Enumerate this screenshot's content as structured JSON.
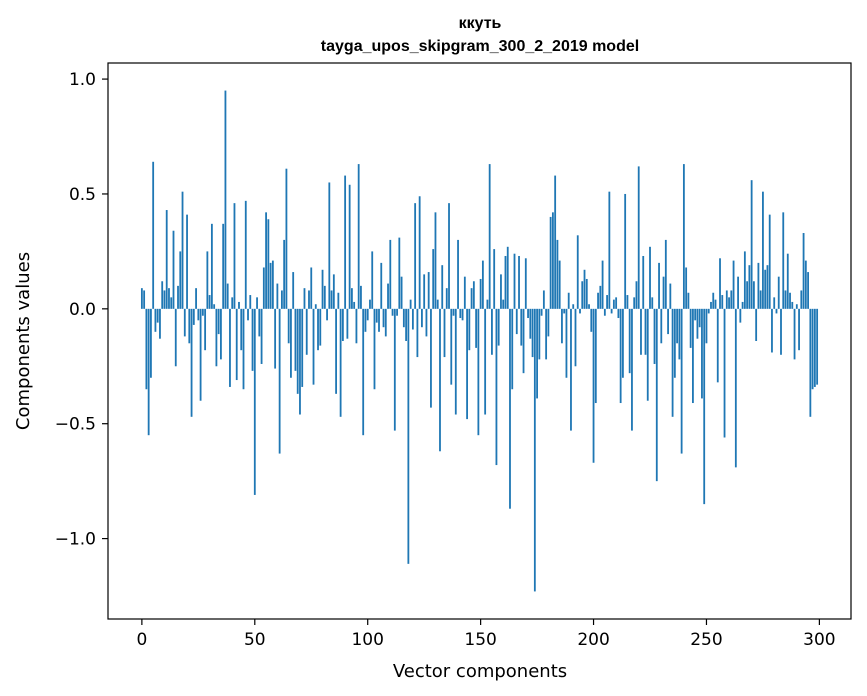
{
  "chart_data": {
    "type": "bar",
    "title": "ккуть",
    "subtitle": "tayga_upos_skipgram_300_2_2019 model",
    "xlabel": "Vector components",
    "ylabel": "Components values",
    "xlim": [
      -15,
      314
    ],
    "ylim": [
      -1.35,
      1.07
    ],
    "xticks": [
      0,
      50,
      100,
      150,
      200,
      250,
      300
    ],
    "xtick_labels": [
      "0",
      "50",
      "100",
      "150",
      "200",
      "250",
      "300"
    ],
    "yticks": [
      1.0,
      0.5,
      0.0,
      -0.5,
      -1.0
    ],
    "ytick_labels": [
      "1.0",
      "0.5",
      "0.0",
      "−0.5",
      "−1.0"
    ],
    "grid": false,
    "color": "#1f77b4",
    "x": [
      0,
      1,
      2,
      3,
      4,
      5,
      6,
      7,
      8,
      9,
      10,
      11,
      12,
      13,
      14,
      15,
      16,
      17,
      18,
      19,
      20,
      21,
      22,
      23,
      24,
      25,
      26,
      27,
      28,
      29,
      30,
      31,
      32,
      33,
      34,
      35,
      36,
      37,
      38,
      39,
      40,
      41,
      42,
      43,
      44,
      45,
      46,
      47,
      48,
      49,
      50,
      51,
      52,
      53,
      54,
      55,
      56,
      57,
      58,
      59,
      60,
      61,
      62,
      63,
      64,
      65,
      66,
      67,
      68,
      69,
      70,
      71,
      72,
      73,
      74,
      75,
      76,
      77,
      78,
      79,
      80,
      81,
      82,
      83,
      84,
      85,
      86,
      87,
      88,
      89,
      90,
      91,
      92,
      93,
      94,
      95,
      96,
      97,
      98,
      99,
      100,
      101,
      102,
      103,
      104,
      105,
      106,
      107,
      108,
      109,
      110,
      111,
      112,
      113,
      114,
      115,
      116,
      117,
      118,
      119,
      120,
      121,
      122,
      123,
      124,
      125,
      126,
      127,
      128,
      129,
      130,
      131,
      132,
      133,
      134,
      135,
      136,
      137,
      138,
      139,
      140,
      141,
      142,
      143,
      144,
      145,
      146,
      147,
      148,
      149,
      150,
      151,
      152,
      153,
      154,
      155,
      156,
      157,
      158,
      159,
      160,
      161,
      162,
      163,
      164,
      165,
      166,
      167,
      168,
      169,
      170,
      171,
      172,
      173,
      174,
      175,
      176,
      177,
      178,
      179,
      180,
      181,
      182,
      183,
      184,
      185,
      186,
      187,
      188,
      189,
      190,
      191,
      192,
      193,
      194,
      195,
      196,
      197,
      198,
      199,
      200,
      201,
      202,
      203,
      204,
      205,
      206,
      207,
      208,
      209,
      210,
      211,
      212,
      213,
      214,
      215,
      216,
      217,
      218,
      219,
      220,
      221,
      222,
      223,
      224,
      225,
      226,
      227,
      228,
      229,
      230,
      231,
      232,
      233,
      234,
      235,
      236,
      237,
      238,
      239,
      240,
      241,
      242,
      243,
      244,
      245,
      246,
      247,
      248,
      249,
      250,
      251,
      252,
      253,
      254,
      255,
      256,
      257,
      258,
      259,
      260,
      261,
      262,
      263,
      264,
      265,
      266,
      267,
      268,
      269,
      270,
      271,
      272,
      273,
      274,
      275,
      276,
      277,
      278,
      279,
      280,
      281,
      282,
      283,
      284,
      285,
      286,
      287,
      288,
      289,
      290,
      291,
      292,
      293,
      294,
      295,
      296,
      297,
      298,
      299
    ],
    "values": [
      0.09,
      0.08,
      -0.35,
      -0.55,
      -0.3,
      0.64,
      -0.1,
      -0.06,
      -0.13,
      0.12,
      0.08,
      0.43,
      0.09,
      0.05,
      0.34,
      -0.25,
      0.1,
      0.25,
      0.51,
      -0.12,
      0.41,
      -0.15,
      -0.47,
      -0.07,
      0.09,
      -0.05,
      -0.4,
      -0.03,
      -0.18,
      0.25,
      0.06,
      0.37,
      0.02,
      -0.25,
      -0.11,
      -0.22,
      0.37,
      0.95,
      0.11,
      -0.34,
      0.05,
      0.46,
      -0.31,
      0.03,
      -0.18,
      -0.35,
      0.47,
      -0.05,
      0.06,
      -0.27,
      -0.81,
      0.05,
      -0.12,
      -0.24,
      0.18,
      0.42,
      0.39,
      0.2,
      0.21,
      -0.26,
      0.11,
      -0.63,
      0.08,
      0.3,
      0.61,
      -0.15,
      -0.3,
      0.16,
      -0.27,
      -0.37,
      -0.46,
      -0.34,
      0.09,
      -0.2,
      0.08,
      0.18,
      -0.33,
      0.02,
      -0.18,
      -0.16,
      0.17,
      0.1,
      -0.05,
      0.55,
      0.08,
      0.15,
      -0.37,
      0.07,
      -0.47,
      -0.14,
      0.58,
      -0.13,
      0.54,
      0.09,
      0.03,
      -0.15,
      0.63,
      0.1,
      -0.55,
      -0.1,
      -0.05,
      0.04,
      0.25,
      -0.35,
      -0.06,
      -0.1,
      0.2,
      -0.08,
      -0.12,
      0.11,
      0.3,
      -0.03,
      -0.53,
      -0.03,
      0.31,
      0.14,
      -0.08,
      -0.14,
      -1.11,
      0.04,
      -0.09,
      0.46,
      -0.21,
      0.49,
      -0.08,
      0.15,
      -0.12,
      0.16,
      -0.43,
      0.26,
      0.42,
      0.04,
      -0.62,
      0.19,
      -0.21,
      0.09,
      0.46,
      -0.33,
      -0.03,
      -0.46,
      0.3,
      -0.04,
      -0.05,
      0.14,
      -0.48,
      -0.18,
      0.09,
      0.12,
      -0.17,
      -0.55,
      0.13,
      0.21,
      -0.46,
      0.04,
      0.63,
      -0.2,
      0.26,
      -0.68,
      -0.16,
      0.15,
      0.04,
      0.23,
      0.27,
      -0.87,
      -0.35,
      0.24,
      -0.11,
      0.23,
      -0.16,
      -0.28,
      0.22,
      -0.04,
      -0.13,
      -0.21,
      -1.23,
      -0.39,
      -0.22,
      -0.03,
      0.08,
      -0.22,
      -0.12,
      0.4,
      0.42,
      0.58,
      0.3,
      0.21,
      -0.15,
      -0.02,
      -0.3,
      0.07,
      -0.53,
      0.02,
      -0.25,
      0.32,
      -0.02,
      0.12,
      0.17,
      0.13,
      0.02,
      -0.1,
      -0.67,
      -0.41,
      0.07,
      0.1,
      0.21,
      -0.03,
      0.06,
      0.51,
      -0.02,
      0.04,
      0.05,
      -0.04,
      -0.41,
      -0.3,
      0.5,
      0.06,
      -0.28,
      -0.53,
      0.05,
      0.12,
      0.62,
      -0.2,
      0.23,
      -0.2,
      -0.4,
      0.27,
      0.05,
      -0.24,
      -0.75,
      0.2,
      -0.15,
      0.14,
      0.3,
      -0.11,
      0.11,
      -0.47,
      -0.3,
      -0.15,
      -0.22,
      -0.63,
      0.63,
      0.18,
      0.07,
      -0.17,
      -0.41,
      -0.05,
      -0.13,
      -0.08,
      -0.39,
      -0.85,
      -0.15,
      -0.02,
      0.03,
      0.07,
      0.04,
      -0.32,
      0.22,
      0.06,
      -0.56,
      0.08,
      0.05,
      0.08,
      0.21,
      -0.69,
      0.14,
      -0.06,
      0.03,
      0.25,
      0.12,
      0.19,
      0.56,
      0.12,
      -0.14,
      0.2,
      0.08,
      0.51,
      0.17,
      0.19,
      0.41,
      -0.19,
      0.05,
      -0.02,
      0.14,
      -0.2,
      0.42,
      0.08,
      0.24,
      0.07,
      0.03,
      -0.22,
      0.02,
      -0.18,
      0.08,
      0.33,
      0.21,
      0.16,
      -0.47,
      -0.35,
      -0.34,
      -0.33
    ]
  }
}
